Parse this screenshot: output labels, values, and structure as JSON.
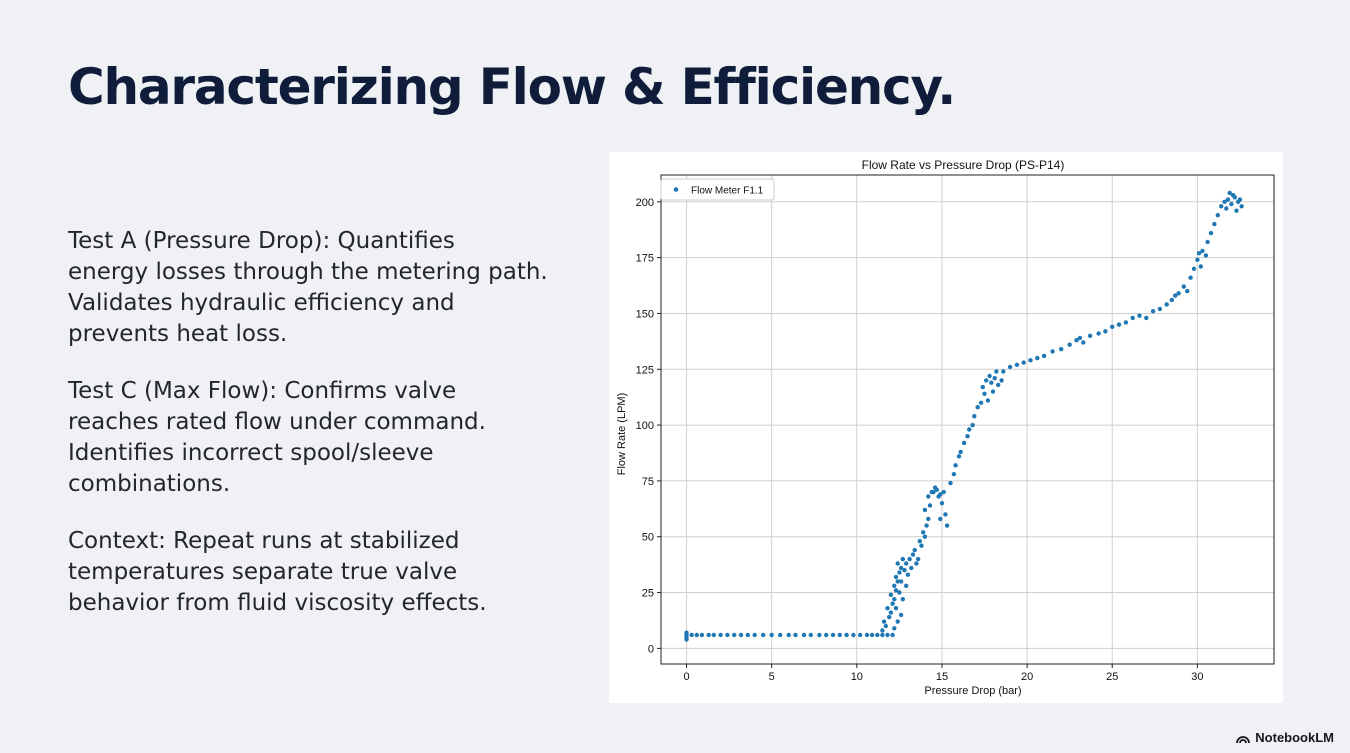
{
  "slide": {
    "title": "Characterizing Flow & Efficiency.",
    "paragraphs": [
      "Test A (Pressure Drop): Quantifies\nenergy losses through the metering path.\nValidates hydraulic efficiency and\nprevents heat loss.",
      "Test C (Max Flow): Confirms valve\nreaches rated flow under command.\nIdentifies incorrect spool/sleeve\ncombinations.",
      "Context: Repeat runs at stabilized\ntemperatures separate true valve\nbehavior from fluid viscosity effects."
    ],
    "brand": "NotebookLM"
  },
  "colors": {
    "title": "#0f1d3a",
    "body_text": "#23262d",
    "background": "#f0f1f5",
    "series": "#1f77b4",
    "grid": "#cfcfcf"
  },
  "chart_data": {
    "type": "scatter",
    "title": "Flow Rate vs Pressure Drop (PS-P14)",
    "xlabel": "Pressure Drop (bar)",
    "ylabel": "Flow Rate (LPM)",
    "xlim": [
      -1.5,
      34.5
    ],
    "ylim": [
      -7,
      212
    ],
    "xticks": [
      0,
      5,
      10,
      15,
      20,
      25,
      30
    ],
    "yticks": [
      0,
      25,
      50,
      75,
      100,
      125,
      150,
      175,
      200
    ],
    "grid": true,
    "legend": "top-left",
    "series": [
      {
        "name": "Flow Meter F1.1",
        "color": "#1f77b4",
        "points": [
          [
            0,
            4
          ],
          [
            0,
            5
          ],
          [
            0,
            6
          ],
          [
            0,
            7
          ],
          [
            0.3,
            6
          ],
          [
            0.6,
            6
          ],
          [
            0.9,
            6
          ],
          [
            1.3,
            6
          ],
          [
            1.6,
            6
          ],
          [
            2.0,
            6
          ],
          [
            2.4,
            6
          ],
          [
            2.8,
            6
          ],
          [
            3.2,
            6
          ],
          [
            3.6,
            6
          ],
          [
            4.0,
            6
          ],
          [
            4.5,
            6
          ],
          [
            5.0,
            6
          ],
          [
            5.5,
            6
          ],
          [
            6.0,
            6
          ],
          [
            6.4,
            6
          ],
          [
            6.9,
            6
          ],
          [
            7.3,
            6
          ],
          [
            7.8,
            6
          ],
          [
            8.2,
            6
          ],
          [
            8.6,
            6
          ],
          [
            9.0,
            6
          ],
          [
            9.4,
            6
          ],
          [
            9.8,
            6
          ],
          [
            10.2,
            6
          ],
          [
            10.6,
            6
          ],
          [
            10.9,
            6
          ],
          [
            11.2,
            6
          ],
          [
            11.5,
            6
          ],
          [
            11.8,
            6
          ],
          [
            12.1,
            6
          ],
          [
            11.5,
            8
          ],
          [
            11.7,
            10
          ],
          [
            11.6,
            12
          ],
          [
            11.9,
            14
          ],
          [
            12.0,
            16
          ],
          [
            11.8,
            18
          ],
          [
            12.1,
            20
          ],
          [
            12.2,
            22
          ],
          [
            12.0,
            24
          ],
          [
            12.3,
            26
          ],
          [
            12.2,
            28
          ],
          [
            12.4,
            30
          ],
          [
            12.3,
            32
          ],
          [
            12.5,
            34
          ],
          [
            12.6,
            36
          ],
          [
            12.4,
            38
          ],
          [
            12.7,
            40
          ],
          [
            12.9,
            38
          ],
          [
            13.1,
            40
          ],
          [
            13.3,
            42
          ],
          [
            12.8,
            35
          ],
          [
            13.0,
            33
          ],
          [
            12.6,
            30
          ],
          [
            12.9,
            28
          ],
          [
            12.5,
            25
          ],
          [
            12.7,
            22
          ],
          [
            12.3,
            18
          ],
          [
            12.6,
            15
          ],
          [
            12.4,
            12
          ],
          [
            12.2,
            9
          ],
          [
            13.2,
            36
          ],
          [
            13.5,
            38
          ],
          [
            13.4,
            44
          ],
          [
            13.6,
            40
          ],
          [
            13.8,
            46
          ],
          [
            13.7,
            48
          ],
          [
            13.9,
            52
          ],
          [
            14.0,
            50
          ],
          [
            14.1,
            55
          ],
          [
            14.2,
            58
          ],
          [
            14.0,
            62
          ],
          [
            14.3,
            64
          ],
          [
            14.2,
            68
          ],
          [
            14.5,
            70
          ],
          [
            14.7,
            71
          ],
          [
            14.9,
            69
          ],
          [
            15.1,
            70
          ],
          [
            14.6,
            72
          ],
          [
            14.8,
            68
          ],
          [
            14.4,
            70
          ],
          [
            15.0,
            65
          ],
          [
            15.2,
            60
          ],
          [
            14.9,
            58
          ],
          [
            15.3,
            55
          ],
          [
            15.5,
            74
          ],
          [
            15.7,
            78
          ],
          [
            15.8,
            82
          ],
          [
            16.0,
            86
          ],
          [
            16.1,
            88
          ],
          [
            16.3,
            92
          ],
          [
            16.5,
            95
          ],
          [
            16.6,
            98
          ],
          [
            16.8,
            100
          ],
          [
            16.9,
            104
          ],
          [
            17.1,
            108
          ],
          [
            17.3,
            110
          ],
          [
            17.5,
            114
          ],
          [
            17.4,
            117
          ],
          [
            17.6,
            120
          ],
          [
            17.9,
            119
          ],
          [
            18.1,
            121
          ],
          [
            18.3,
            118
          ],
          [
            17.8,
            122
          ],
          [
            18.5,
            120
          ],
          [
            18.0,
            115
          ],
          [
            17.7,
            111
          ],
          [
            18.2,
            124
          ],
          [
            18.6,
            124
          ],
          [
            19.0,
            126
          ],
          [
            19.4,
            127
          ],
          [
            19.8,
            128
          ],
          [
            20.2,
            129
          ],
          [
            20.6,
            130
          ],
          [
            21.0,
            131
          ],
          [
            21.5,
            133
          ],
          [
            22.0,
            134
          ],
          [
            22.5,
            136
          ],
          [
            22.9,
            138
          ],
          [
            23.1,
            139
          ],
          [
            23.3,
            137
          ],
          [
            23.7,
            140
          ],
          [
            24.2,
            141
          ],
          [
            24.6,
            142
          ],
          [
            25.0,
            144
          ],
          [
            25.4,
            145
          ],
          [
            25.8,
            146
          ],
          [
            26.2,
            148
          ],
          [
            26.6,
            149
          ],
          [
            27.0,
            148
          ],
          [
            27.4,
            151
          ],
          [
            27.8,
            152
          ],
          [
            28.2,
            154
          ],
          [
            28.5,
            156
          ],
          [
            28.7,
            158
          ],
          [
            28.9,
            159
          ],
          [
            29.2,
            162
          ],
          [
            29.4,
            160
          ],
          [
            29.6,
            166
          ],
          [
            29.8,
            170
          ],
          [
            30.0,
            174
          ],
          [
            30.1,
            177
          ],
          [
            30.3,
            178
          ],
          [
            30.5,
            176
          ],
          [
            30.2,
            171
          ],
          [
            30.6,
            182
          ],
          [
            30.8,
            186
          ],
          [
            31.0,
            190
          ],
          [
            31.2,
            194
          ],
          [
            31.4,
            198
          ],
          [
            31.6,
            200
          ],
          [
            31.8,
            201
          ],
          [
            32.0,
            199
          ],
          [
            32.2,
            202
          ],
          [
            32.4,
            200
          ],
          [
            32.6,
            198
          ],
          [
            31.9,
            204
          ],
          [
            32.3,
            196
          ],
          [
            32.1,
            203
          ],
          [
            31.7,
            197
          ],
          [
            32.5,
            201
          ]
        ]
      }
    ]
  }
}
